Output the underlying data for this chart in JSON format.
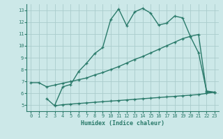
{
  "xlabel": "Humidex (Indice chaleur)",
  "bg_color": "#cce8e8",
  "grid_color": "#aacccc",
  "line_color": "#2a7a6a",
  "xlim": [
    -0.5,
    23.5
  ],
  "ylim": [
    4.5,
    13.5
  ],
  "xticks": [
    0,
    1,
    2,
    3,
    4,
    5,
    6,
    7,
    8,
    9,
    10,
    11,
    12,
    13,
    14,
    15,
    16,
    17,
    18,
    19,
    20,
    21,
    22,
    23
  ],
  "yticks": [
    5,
    6,
    7,
    8,
    9,
    10,
    11,
    12,
    13
  ],
  "line1_x": [
    3,
    4,
    5,
    6,
    7,
    8,
    9,
    10,
    11,
    12,
    13,
    14,
    15,
    16,
    17,
    18,
    19,
    20,
    21,
    22,
    23
  ],
  "line1_y": [
    5.0,
    6.55,
    6.75,
    7.85,
    8.55,
    9.35,
    9.85,
    12.2,
    13.1,
    11.7,
    12.85,
    13.15,
    12.75,
    11.75,
    11.9,
    12.5,
    12.35,
    10.75,
    9.4,
    6.2,
    6.1
  ],
  "line2_x": [
    0,
    1,
    2,
    3,
    4,
    5,
    6,
    7,
    8,
    9,
    10,
    11,
    12,
    13,
    14,
    15,
    16,
    17,
    18,
    19,
    20,
    21,
    22,
    23
  ],
  "line2_y": [
    6.9,
    6.9,
    6.55,
    6.7,
    6.85,
    7.0,
    7.15,
    7.3,
    7.55,
    7.75,
    8.0,
    8.25,
    8.55,
    8.85,
    9.1,
    9.4,
    9.7,
    10.0,
    10.3,
    10.6,
    10.8,
    10.95,
    6.1,
    6.1
  ],
  "line3_x": [
    2,
    3,
    4,
    5,
    6,
    7,
    8,
    9,
    10,
    11,
    12,
    13,
    14,
    15,
    16,
    17,
    18,
    19,
    20,
    21,
    22,
    23
  ],
  "line3_y": [
    5.55,
    4.95,
    5.05,
    5.1,
    5.15,
    5.2,
    5.25,
    5.3,
    5.35,
    5.4,
    5.45,
    5.5,
    5.55,
    5.6,
    5.65,
    5.7,
    5.75,
    5.8,
    5.85,
    5.9,
    6.0,
    6.1
  ]
}
